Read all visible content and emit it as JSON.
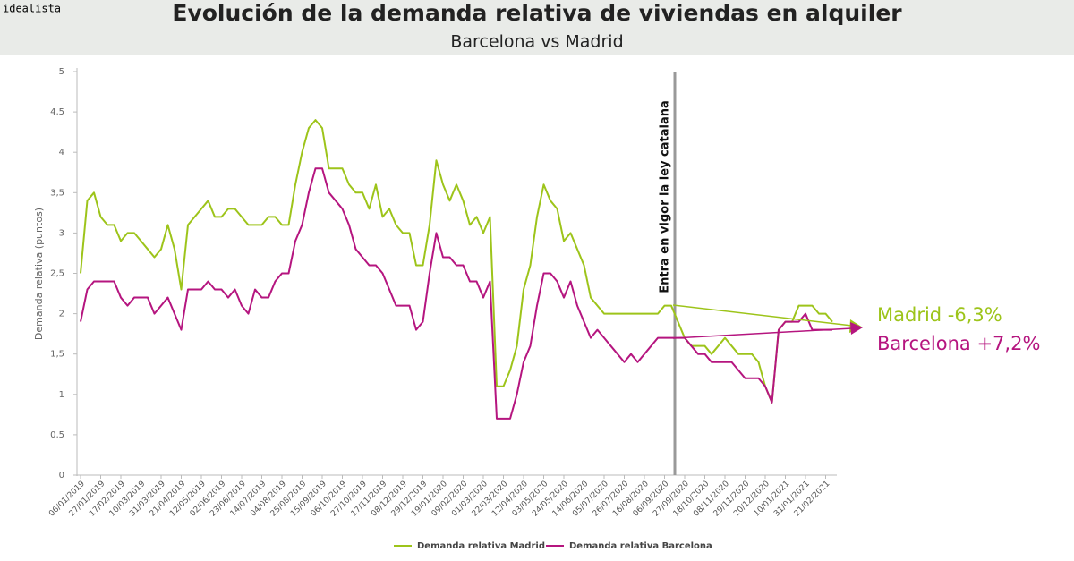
{
  "brand": "idealista",
  "chart_data": {
    "type": "line",
    "title": "Evolución de la demanda relativa de viviendas en alquiler",
    "subtitle": "Barcelona vs Madrid",
    "y_label": "Demanda relativa (puntos)",
    "categories": [
      "06/01/2019",
      null,
      null,
      "27/01/2019",
      null,
      null,
      "17/02/2019",
      null,
      null,
      "10/03/2019",
      null,
      null,
      "31/03/2019",
      null,
      null,
      "21/04/2019",
      null,
      null,
      "12/05/2019",
      null,
      null,
      "02/06/2019",
      null,
      null,
      "23/06/2019",
      null,
      null,
      "14/07/2019",
      null,
      null,
      "04/08/2019",
      null,
      null,
      "25/08/2019",
      null,
      null,
      "15/09/2019",
      null,
      null,
      "06/10/2019",
      null,
      null,
      "27/10/2019",
      null,
      null,
      "17/11/2019",
      null,
      null,
      "08/12/2019",
      null,
      null,
      "29/12/2019",
      null,
      null,
      "19/01/2020",
      null,
      null,
      "09/02/2020",
      null,
      null,
      "01/03/2020",
      null,
      null,
      "22/03/2020",
      null,
      null,
      "12/04/2020",
      null,
      null,
      "03/05/2020",
      null,
      null,
      "24/05/2020",
      null,
      null,
      "14/06/2020",
      null,
      null,
      "05/07/2020",
      null,
      null,
      "26/07/2020",
      null,
      null,
      "16/08/2020",
      null,
      null,
      "06/09/2020",
      null,
      null,
      "27/09/2020",
      null,
      null,
      "18/10/2020",
      null,
      null,
      "08/11/2020",
      null,
      null,
      "29/11/2020",
      null,
      null,
      "20/12/2020",
      null,
      null,
      "10/01/2021",
      null,
      null,
      "31/01/2021",
      null,
      null,
      "21/02/2021",
      null
    ],
    "series": [
      {
        "name": "Demanda relativa Madrid",
        "color": "#9dc41a",
        "values": [
          2.5,
          3.4,
          3.5,
          3.2,
          3.1,
          3.1,
          2.9,
          3.0,
          3.0,
          2.9,
          2.8,
          2.7,
          2.8,
          3.1,
          2.8,
          2.3,
          3.1,
          3.2,
          3.3,
          3.4,
          3.2,
          3.2,
          3.3,
          3.3,
          3.2,
          3.1,
          3.1,
          3.1,
          3.2,
          3.2,
          3.1,
          3.1,
          3.6,
          4.0,
          4.3,
          4.4,
          4.3,
          3.8,
          3.8,
          3.8,
          3.6,
          3.5,
          3.5,
          3.3,
          3.6,
          3.2,
          3.3,
          3.1,
          3.0,
          3.0,
          2.6,
          2.6,
          3.1,
          3.9,
          3.6,
          3.4,
          3.6,
          3.4,
          3.1,
          3.2,
          3.0,
          3.2,
          1.1,
          1.1,
          1.3,
          1.6,
          2.3,
          2.6,
          3.2,
          3.6,
          3.4,
          3.3,
          2.9,
          3.0,
          2.8,
          2.6,
          2.2,
          2.1,
          2.0,
          2.0,
          2.0,
          2.0,
          2.0,
          2.0,
          2.0,
          2.0,
          2.0,
          2.1,
          2.1,
          1.9,
          1.7,
          1.6,
          1.6,
          1.6,
          1.5,
          1.6,
          1.7,
          1.6,
          1.5,
          1.5,
          1.5,
          1.4,
          1.1,
          0.9,
          1.8,
          1.9,
          1.9,
          2.1,
          2.1,
          2.1,
          2.0,
          2.0,
          1.9
        ]
      },
      {
        "name": "Demanda relativa Barcelona",
        "color": "#b5157f",
        "values": [
          1.9,
          2.3,
          2.4,
          2.4,
          2.4,
          2.4,
          2.2,
          2.1,
          2.2,
          2.2,
          2.2,
          2.0,
          2.1,
          2.2,
          2.0,
          1.8,
          2.3,
          2.3,
          2.3,
          2.4,
          2.3,
          2.3,
          2.2,
          2.3,
          2.1,
          2.0,
          2.3,
          2.2,
          2.2,
          2.4,
          2.5,
          2.5,
          2.9,
          3.1,
          3.5,
          3.8,
          3.8,
          3.5,
          3.4,
          3.3,
          3.1,
          2.8,
          2.7,
          2.6,
          2.6,
          2.5,
          2.3,
          2.1,
          2.1,
          2.1,
          1.8,
          1.9,
          2.5,
          3.0,
          2.7,
          2.7,
          2.6,
          2.6,
          2.4,
          2.4,
          2.2,
          2.4,
          0.7,
          0.7,
          0.7,
          1.0,
          1.4,
          1.6,
          2.1,
          2.5,
          2.5,
          2.4,
          2.2,
          2.4,
          2.1,
          1.9,
          1.7,
          1.8,
          1.7,
          1.6,
          1.5,
          1.4,
          1.5,
          1.4,
          1.5,
          1.6,
          1.7,
          1.7,
          1.7,
          1.7,
          1.7,
          1.6,
          1.5,
          1.5,
          1.4,
          1.4,
          1.4,
          1.4,
          1.3,
          1.2,
          1.2,
          1.2,
          1.1,
          0.9,
          1.8,
          1.9,
          1.9,
          1.9,
          2.0,
          1.8,
          1.8,
          1.8,
          1.8
        ]
      }
    ],
    "ylim": [
      0,
      5
    ],
    "yticks": [
      0,
      {
        "value": 0.5,
        "label": "0,5"
      },
      1,
      {
        "value": 1.5,
        "label": "1,5"
      },
      2,
      {
        "value": 2.5,
        "label": "2,5"
      },
      3,
      {
        "value": 3.5,
        "label": "3,5"
      },
      4,
      {
        "value": 4.5,
        "label": "4,5"
      },
      5
    ],
    "annotations": [
      {
        "text": "Entra en vigor la ley catalana"
      },
      {
        "text": "Madrid -6,3%",
        "color": "#9dc41a"
      },
      {
        "text": "Barcelona +7,2%",
        "color": "#b5157f"
      }
    ]
  }
}
